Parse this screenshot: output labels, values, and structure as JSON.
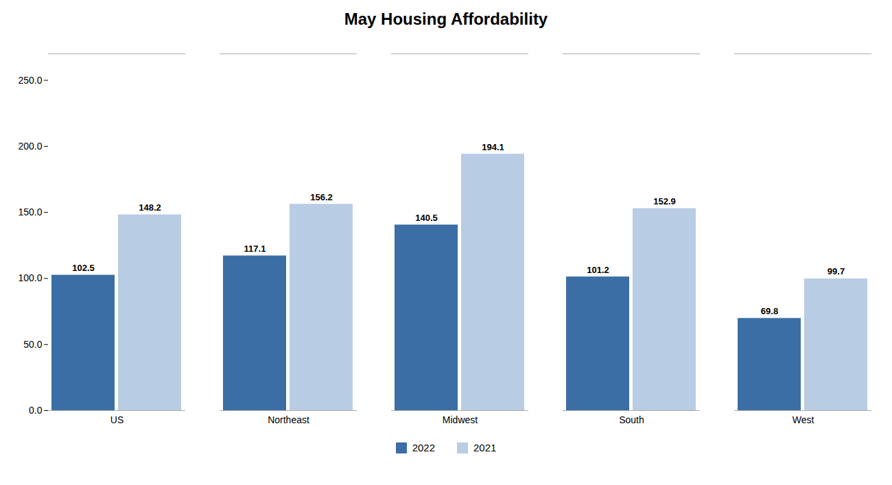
{
  "chart_data": {
    "type": "bar",
    "title": "May Housing Affordability",
    "categories": [
      "US",
      "Northeast",
      "Midwest",
      "South",
      "West"
    ],
    "series": [
      {
        "name": "2022",
        "color": "#3A6EA5",
        "values": [
          102.5,
          117.1,
          140.5,
          101.2,
          69.8
        ]
      },
      {
        "name": "2021",
        "color": "#B8CCE4",
        "values": [
          148.2,
          156.2,
          194.1,
          152.9,
          99.7
        ]
      }
    ],
    "ylim": [
      0,
      270
    ],
    "yticks": [
      {
        "value": 0,
        "label": "0.0"
      },
      {
        "value": 50,
        "label": "50.0"
      },
      {
        "value": 100,
        "label": "100.0"
      },
      {
        "value": 150,
        "label": "150.0"
      },
      {
        "value": 200,
        "label": "200.0"
      },
      {
        "value": 250,
        "label": "250.0"
      }
    ],
    "data_labels": true,
    "legend": "bottom",
    "grid": false
  }
}
